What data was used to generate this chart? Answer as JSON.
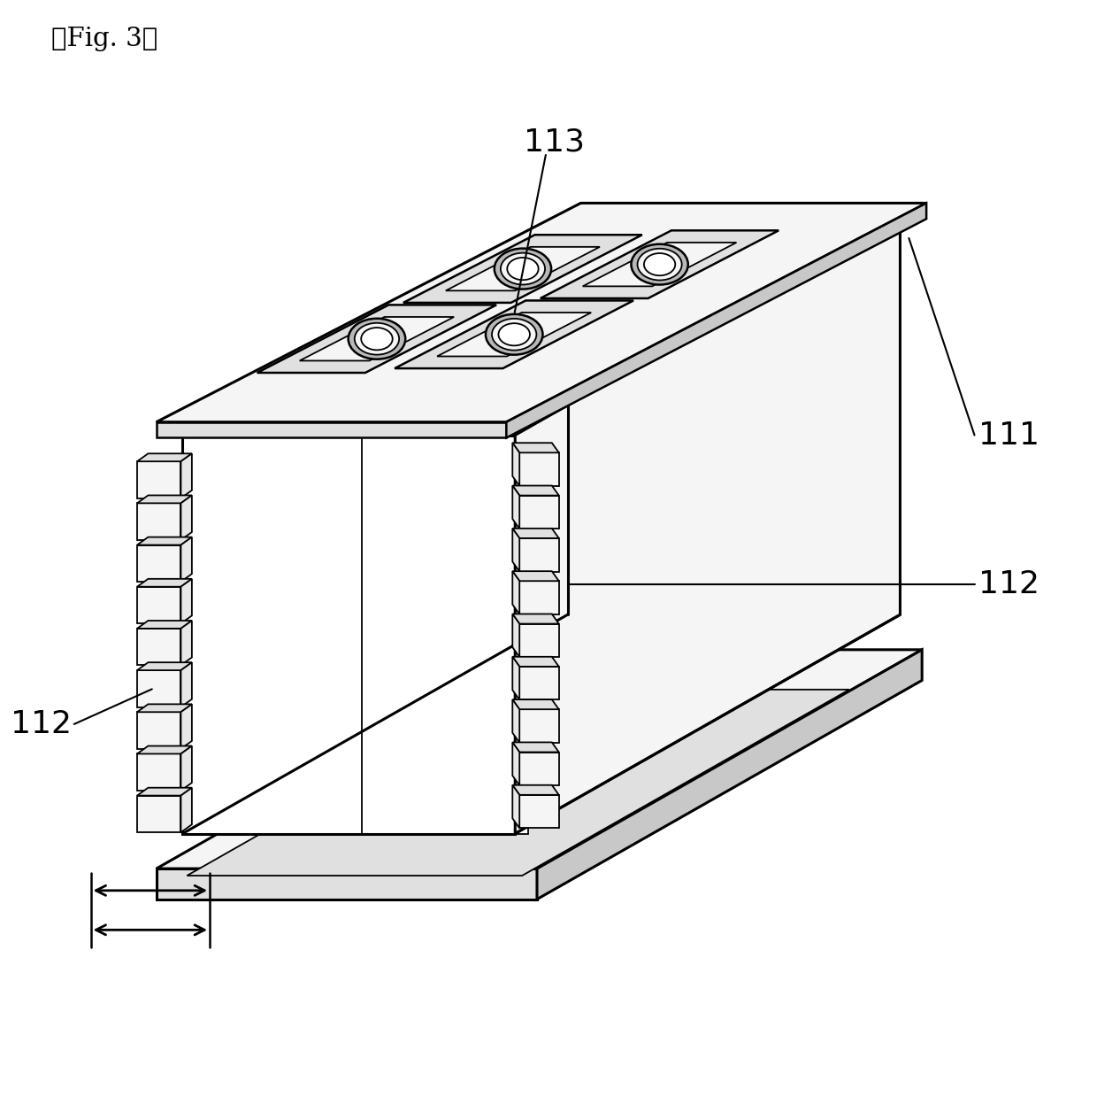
{
  "title_label": "【Fig. 3】",
  "label_113": "113",
  "label_112": "112",
  "label_111": "111",
  "bg_color": "#ffffff",
  "line_color": "#000000",
  "face_light": "#f5f5f5",
  "face_mid": "#e0e0e0",
  "face_dark": "#c8c8c8",
  "fin_face": "#f0f0f0",
  "fin_top": "#d8d8d8",
  "fin_side": "#e8e8e8"
}
